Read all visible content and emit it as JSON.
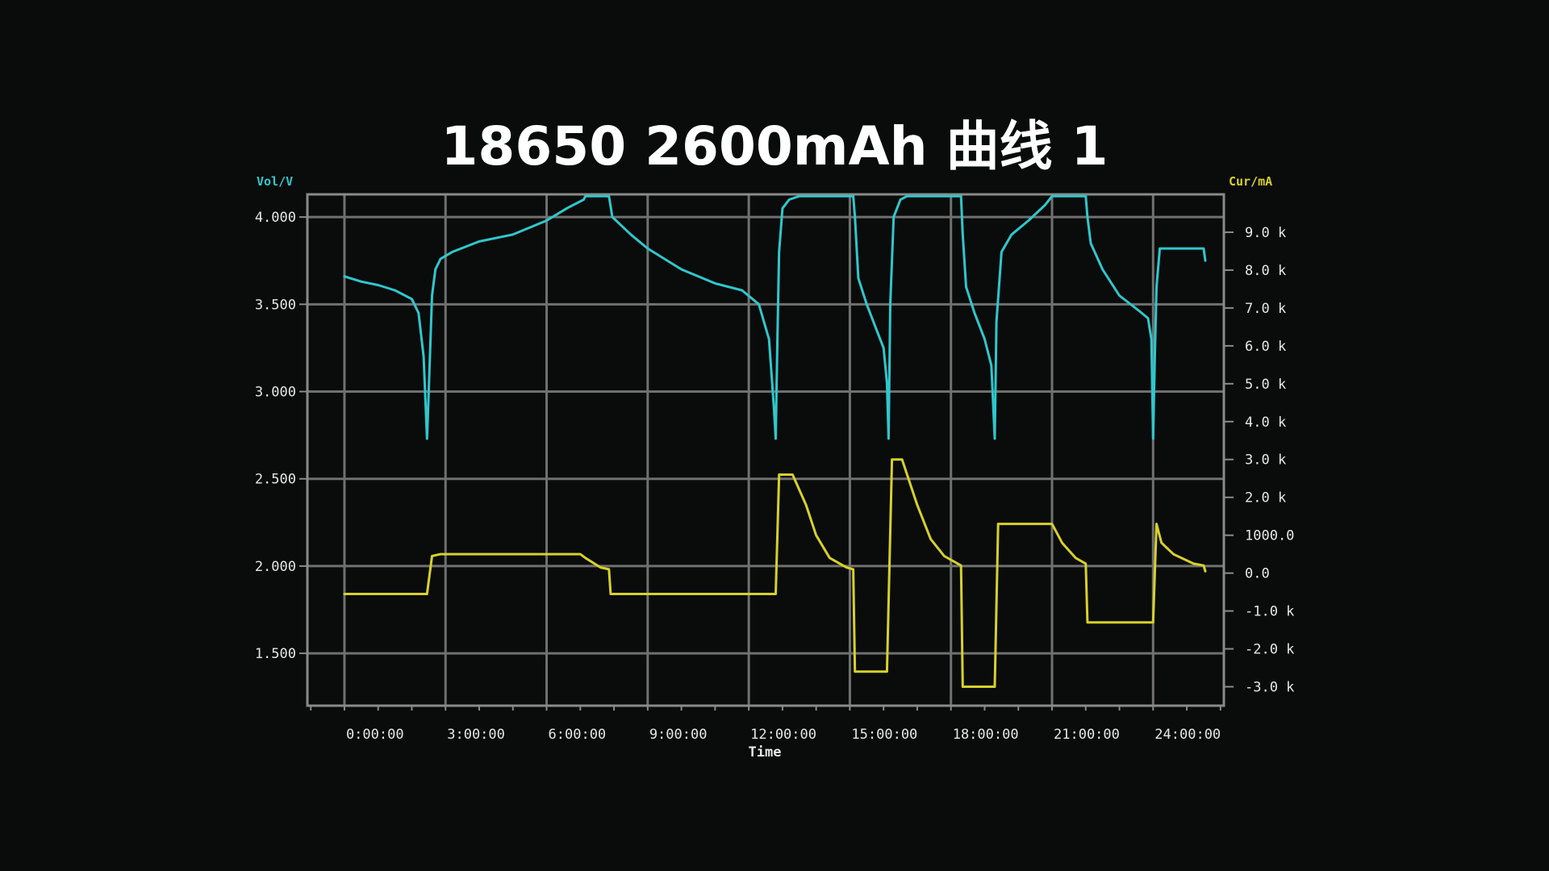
{
  "title": "18650 2600mAh 曲线 1",
  "chart_data": {
    "type": "line",
    "title": "18650 2600mAh 曲线 1",
    "xlabel": "Time",
    "ylabel_left": "Vol/V",
    "ylabel_right": "Cur/mA",
    "x_unit": "hours",
    "xlim": [
      -1.1,
      26.1
    ],
    "ylim_left": [
      1.2,
      4.13
    ],
    "ylim_right": [
      -3.5,
      10.0
    ],
    "x_ticks": [
      {
        "value": 0,
        "label": "0:00:00"
      },
      {
        "value": 3,
        "label": "3:00:00"
      },
      {
        "value": 6,
        "label": "6:00:00"
      },
      {
        "value": 9,
        "label": "9:00:00"
      },
      {
        "value": 12,
        "label": "12:00:00"
      },
      {
        "value": 15,
        "label": "15:00:00"
      },
      {
        "value": 18,
        "label": "18:00:00"
      },
      {
        "value": 21,
        "label": "21:00:00"
      },
      {
        "value": 24,
        "label": "24:00:00"
      }
    ],
    "y_ticks_left": [
      {
        "value": 4.0,
        "label": "4.000"
      },
      {
        "value": 3.5,
        "label": "3.500"
      },
      {
        "value": 3.0,
        "label": "3.000"
      },
      {
        "value": 2.5,
        "label": "2.500"
      },
      {
        "value": 2.0,
        "label": "2.000"
      },
      {
        "value": 1.5,
        "label": "1.500"
      }
    ],
    "y_ticks_right": [
      {
        "value": 9.0,
        "label": "9.0 k"
      },
      {
        "value": 8.0,
        "label": "8.0 k"
      },
      {
        "value": 7.0,
        "label": "7.0 k"
      },
      {
        "value": 6.0,
        "label": "6.0 k"
      },
      {
        "value": 5.0,
        "label": "5.0 k"
      },
      {
        "value": 4.0,
        "label": "4.0 k"
      },
      {
        "value": 3.0,
        "label": "3.0 k"
      },
      {
        "value": 2.0,
        "label": "2.0 k"
      },
      {
        "value": 1.0,
        "label": "1000.0"
      },
      {
        "value": 0.0,
        "label": "0.0"
      },
      {
        "value": -1.0,
        "label": "-1.0 k"
      },
      {
        "value": -2.0,
        "label": "-2.0 k"
      },
      {
        "value": -3.0,
        "label": "-3.0 k"
      }
    ],
    "grid": true,
    "colors": {
      "background": "#0a0b0b",
      "grid": "#707070",
      "axis": "#8a8a8a",
      "voltage": "#2ec8cc",
      "current": "#d6d12a",
      "title": "#ffffff",
      "tick_text": "#e6e6e6"
    },
    "series": [
      {
        "axis": "left",
        "color": "#2ec8cc",
        "points": [
          [
            0.0,
            3.66
          ],
          [
            0.5,
            3.63
          ],
          [
            1.0,
            3.61
          ],
          [
            1.5,
            3.58
          ],
          [
            2.0,
            3.53
          ],
          [
            2.2,
            3.45
          ],
          [
            2.35,
            3.2
          ],
          [
            2.45,
            2.73
          ],
          [
            2.5,
            3.0
          ],
          [
            2.6,
            3.55
          ],
          [
            2.7,
            3.7
          ],
          [
            2.85,
            3.76
          ],
          [
            3.2,
            3.8
          ],
          [
            4.0,
            3.86
          ],
          [
            5.0,
            3.9
          ],
          [
            6.0,
            3.98
          ],
          [
            6.6,
            4.05
          ],
          [
            7.1,
            4.1
          ],
          [
            7.15,
            4.12
          ],
          [
            7.85,
            4.12
          ],
          [
            7.95,
            4.0
          ],
          [
            8.5,
            3.9
          ],
          [
            9.0,
            3.82
          ],
          [
            10.0,
            3.7
          ],
          [
            11.0,
            3.62
          ],
          [
            11.8,
            3.58
          ],
          [
            12.3,
            3.5
          ],
          [
            12.6,
            3.3
          ],
          [
            12.75,
            2.9
          ],
          [
            12.8,
            2.73
          ],
          [
            12.85,
            3.3
          ],
          [
            12.9,
            3.8
          ],
          [
            13.0,
            4.05
          ],
          [
            13.2,
            4.1
          ],
          [
            13.5,
            4.12
          ],
          [
            15.1,
            4.12
          ],
          [
            15.15,
            4.0
          ],
          [
            15.25,
            3.65
          ],
          [
            15.5,
            3.5
          ],
          [
            15.8,
            3.35
          ],
          [
            16.0,
            3.25
          ],
          [
            16.1,
            3.05
          ],
          [
            16.15,
            2.73
          ],
          [
            16.2,
            3.5
          ],
          [
            16.3,
            4.0
          ],
          [
            16.5,
            4.1
          ],
          [
            16.7,
            4.12
          ],
          [
            18.3,
            4.12
          ],
          [
            18.35,
            3.9
          ],
          [
            18.45,
            3.6
          ],
          [
            18.7,
            3.45
          ],
          [
            19.0,
            3.3
          ],
          [
            19.2,
            3.15
          ],
          [
            19.3,
            2.73
          ],
          [
            19.35,
            3.4
          ],
          [
            19.5,
            3.8
          ],
          [
            19.8,
            3.9
          ],
          [
            20.3,
            3.98
          ],
          [
            20.8,
            4.07
          ],
          [
            21.0,
            4.12
          ],
          [
            22.0,
            4.12
          ],
          [
            22.05,
            4.0
          ],
          [
            22.15,
            3.85
          ],
          [
            22.5,
            3.7
          ],
          [
            23.0,
            3.55
          ],
          [
            23.6,
            3.46
          ],
          [
            23.85,
            3.42
          ],
          [
            23.95,
            3.3
          ],
          [
            24.0,
            2.73
          ],
          [
            24.05,
            3.2
          ],
          [
            24.1,
            3.6
          ],
          [
            24.2,
            3.82
          ],
          [
            25.5,
            3.82
          ],
          [
            25.55,
            3.75
          ]
        ]
      },
      {
        "axis": "right",
        "color": "#d6d12a",
        "points": [
          [
            0.0,
            -0.55
          ],
          [
            2.45,
            -0.55
          ],
          [
            2.6,
            0.45
          ],
          [
            2.85,
            0.5
          ],
          [
            7.0,
            0.5
          ],
          [
            7.15,
            0.4
          ],
          [
            7.6,
            0.15
          ],
          [
            7.85,
            0.1
          ],
          [
            7.9,
            -0.55
          ],
          [
            12.8,
            -0.55
          ],
          [
            12.9,
            2.6
          ],
          [
            13.3,
            2.6
          ],
          [
            13.7,
            1.8
          ],
          [
            14.0,
            1.0
          ],
          [
            14.4,
            0.4
          ],
          [
            14.9,
            0.15
          ],
          [
            15.1,
            0.1
          ],
          [
            15.15,
            -2.6
          ],
          [
            16.1,
            -2.6
          ],
          [
            16.25,
            3.0
          ],
          [
            16.55,
            3.0
          ],
          [
            17.0,
            1.8
          ],
          [
            17.4,
            0.9
          ],
          [
            17.8,
            0.45
          ],
          [
            18.3,
            0.2
          ],
          [
            18.35,
            -3.0
          ],
          [
            19.3,
            -3.0
          ],
          [
            19.4,
            1.3
          ],
          [
            21.0,
            1.3
          ],
          [
            21.3,
            0.8
          ],
          [
            21.7,
            0.4
          ],
          [
            22.0,
            0.25
          ],
          [
            22.05,
            -1.3
          ],
          [
            24.0,
            -1.3
          ],
          [
            24.1,
            1.3
          ],
          [
            24.25,
            0.8
          ],
          [
            24.6,
            0.5
          ],
          [
            25.2,
            0.25
          ],
          [
            25.5,
            0.2
          ],
          [
            25.55,
            0.05
          ]
        ]
      }
    ]
  }
}
